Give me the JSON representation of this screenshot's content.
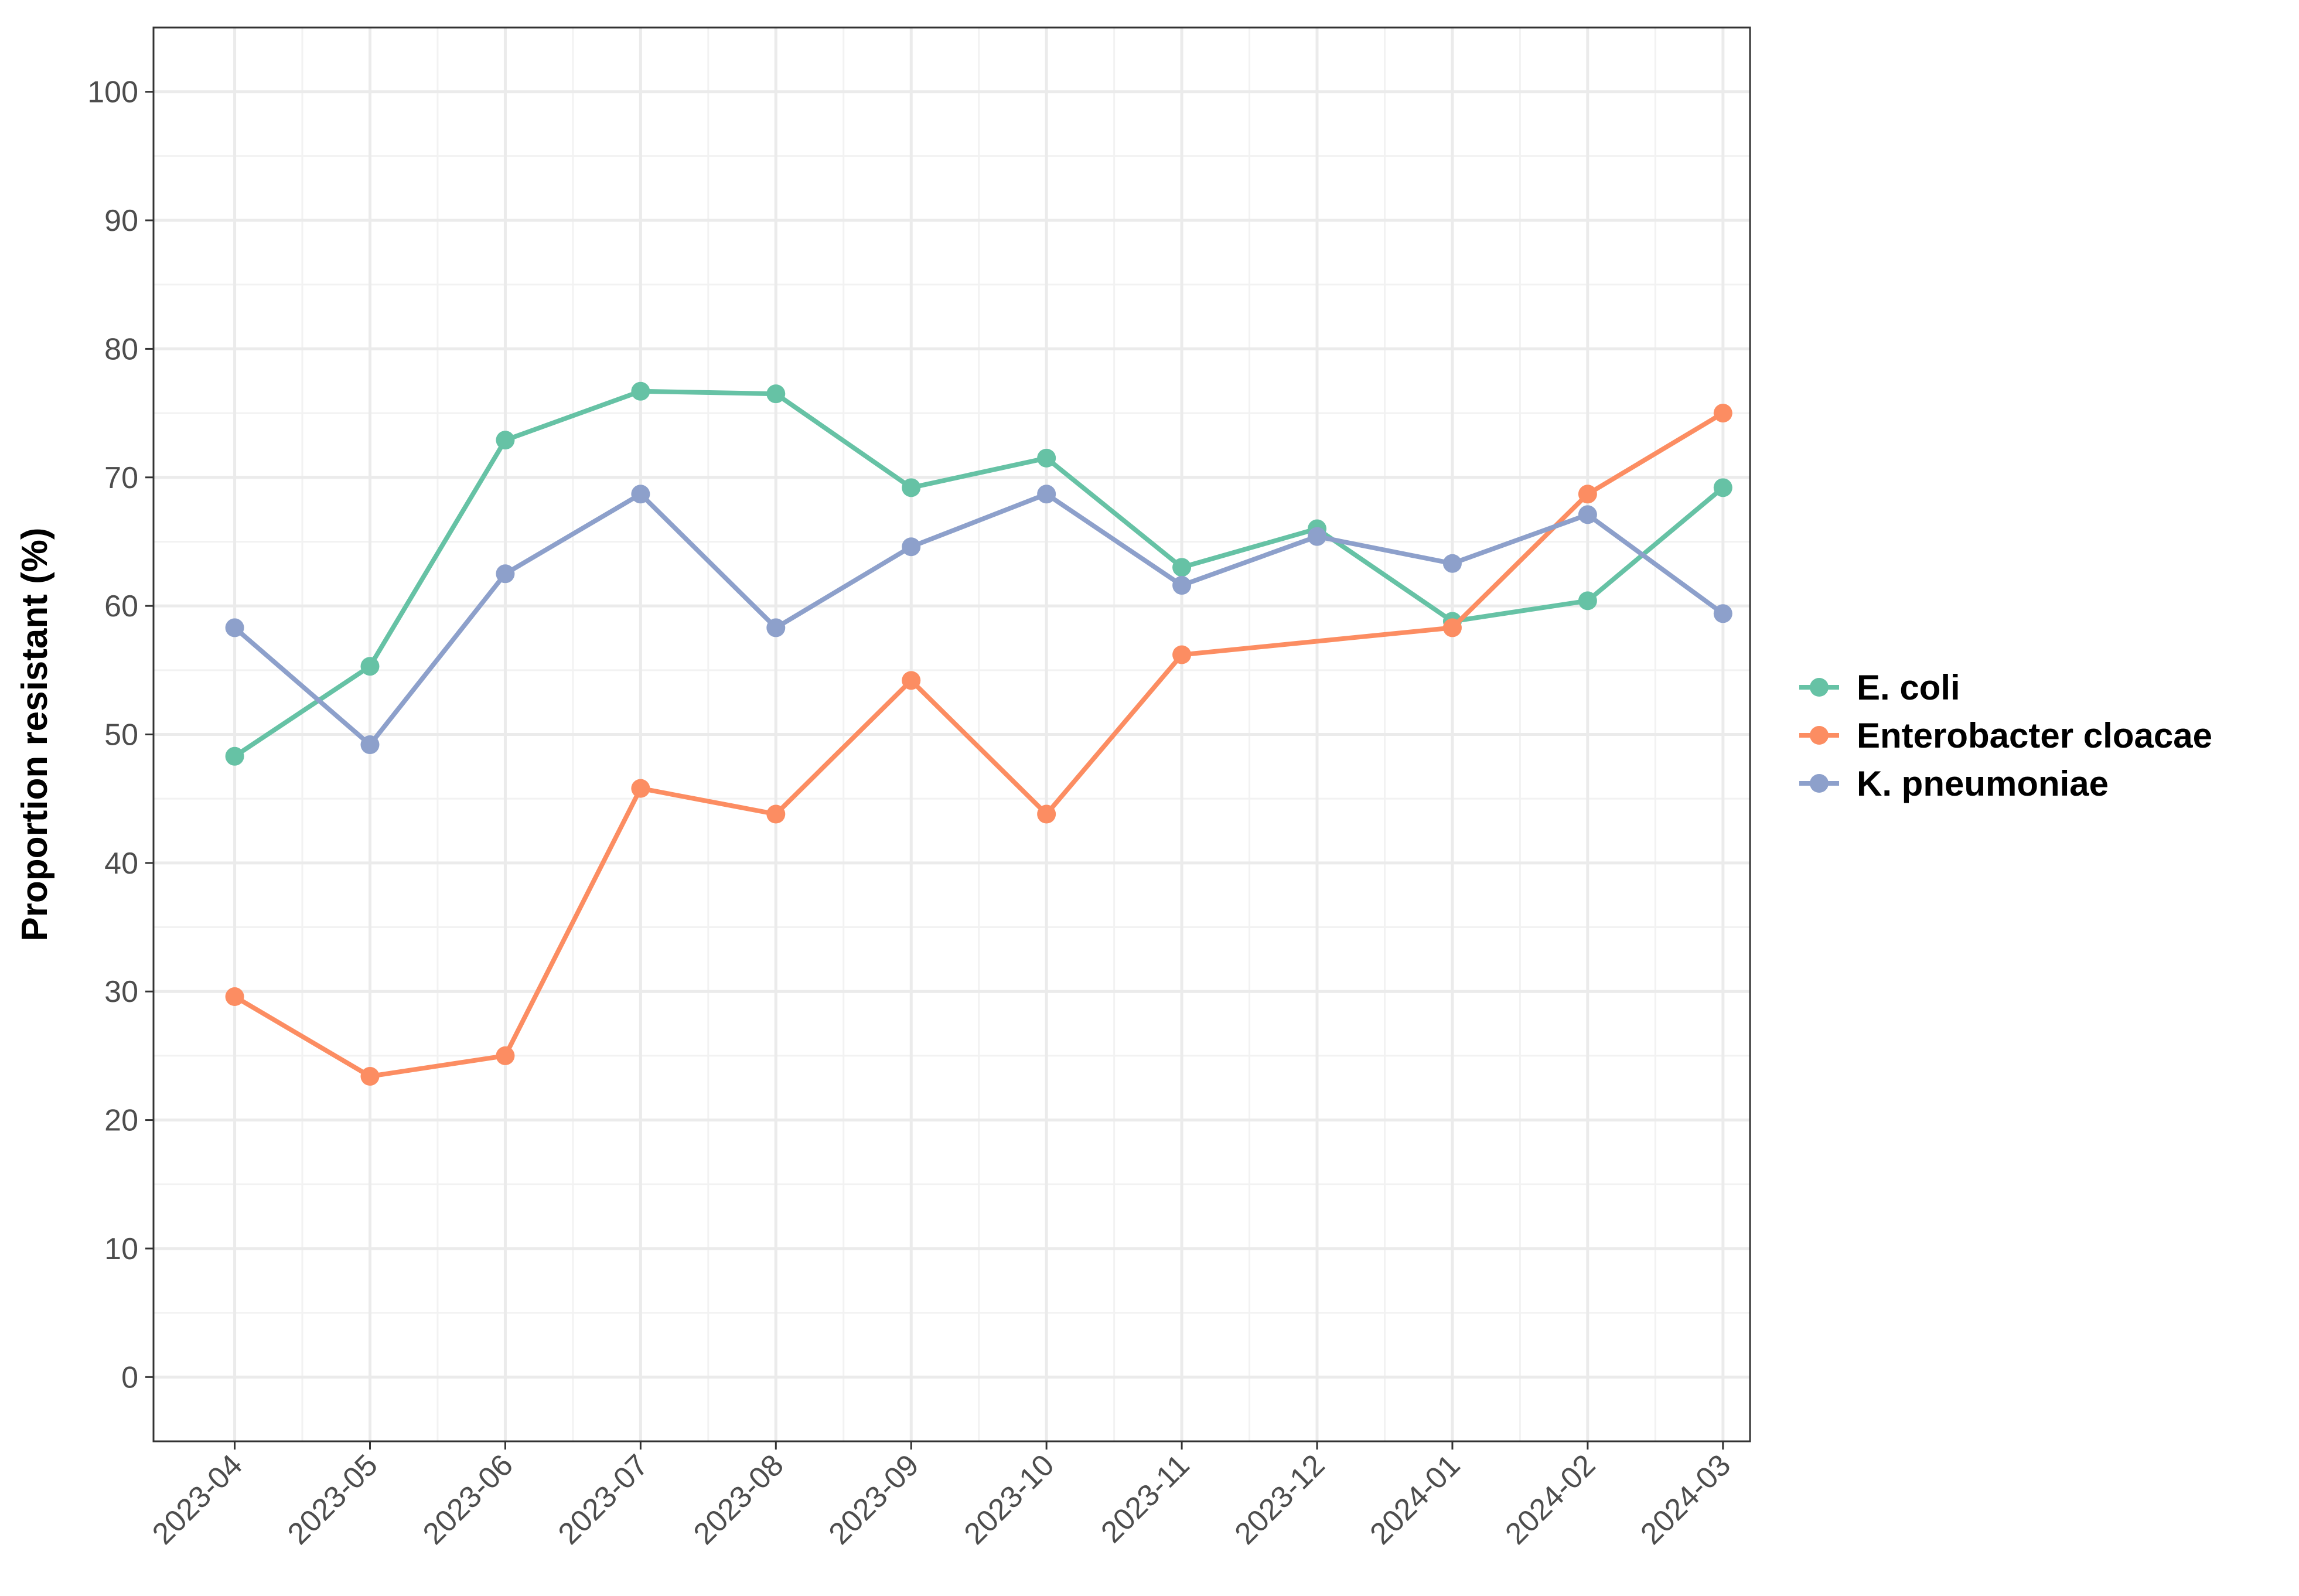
{
  "chart_data": {
    "type": "line",
    "title": "",
    "xlabel": "",
    "ylabel": "Proportion resistant (%)",
    "categories": [
      "2023-04",
      "2023-05",
      "2023-06",
      "2023-07",
      "2023-08",
      "2023-09",
      "2023-10",
      "2023-11",
      "2023-12",
      "2024-01",
      "2024-02",
      "2024-03"
    ],
    "y_ticks": [
      "0",
      "10",
      "20",
      "30",
      "40",
      "50",
      "60",
      "70",
      "80",
      "90",
      "100"
    ],
    "ylim": [
      -5,
      105
    ],
    "grid": true,
    "legend_position": "right",
    "series": [
      {
        "name": "E. coli",
        "color": "#66c2a5",
        "values": [
          48.3,
          55.3,
          72.9,
          76.7,
          76.5,
          69.2,
          71.5,
          63.0,
          66.0,
          58.8,
          60.4,
          69.2
        ]
      },
      {
        "name": "Enterobacter cloacae",
        "color": "#fc8d62",
        "values": [
          29.6,
          23.4,
          25.0,
          45.8,
          43.8,
          54.2,
          43.8,
          56.2,
          null,
          58.3,
          68.7,
          75.0
        ]
      },
      {
        "name": "K. pneumoniae",
        "color": "#8da0cb",
        "values": [
          58.3,
          49.2,
          62.5,
          68.7,
          58.3,
          64.6,
          68.7,
          61.6,
          65.4,
          63.3,
          67.1,
          59.4
        ]
      }
    ]
  }
}
